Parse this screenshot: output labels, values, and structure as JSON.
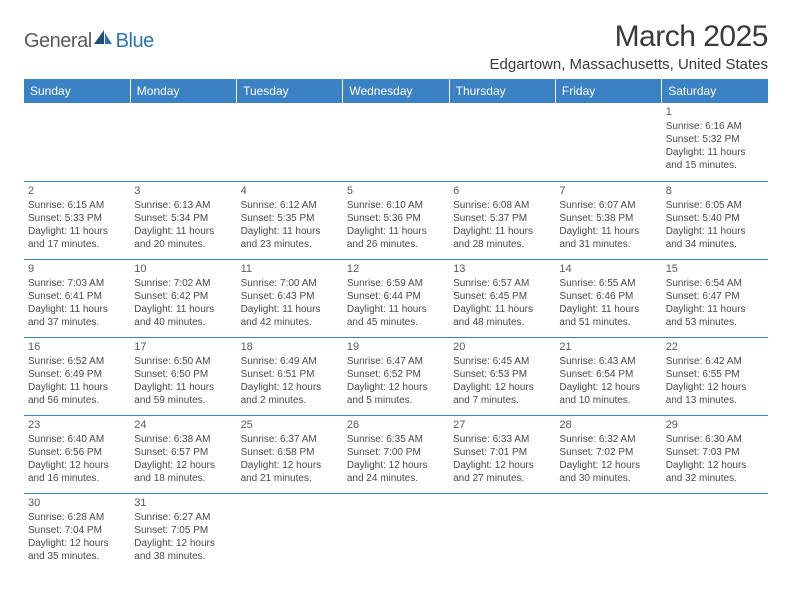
{
  "logo": {
    "general": "General",
    "blue": "Blue"
  },
  "title": "March 2025",
  "location": "Edgartown, Massachusetts, United States",
  "colors": {
    "header_bg": "#3b82c4",
    "header_text": "#ffffff",
    "border": "#3b82c4",
    "body_text": "#4a4a4a",
    "daynum_text": "#5a5a5a",
    "logo_gray": "#5a5a5a",
    "logo_blue": "#2a72b5",
    "title_text": "#3a3a3a",
    "background": "#ffffff"
  },
  "typography": {
    "title_fontsize": 30,
    "location_fontsize": 15,
    "header_fontsize": 12,
    "cell_fontsize": 10,
    "daynum_fontsize": 11,
    "logo_fontsize": 20
  },
  "weekdays": [
    "Sunday",
    "Monday",
    "Tuesday",
    "Wednesday",
    "Thursday",
    "Friday",
    "Saturday"
  ],
  "weeks": [
    [
      null,
      null,
      null,
      null,
      null,
      null,
      {
        "n": "1",
        "sunrise": "Sunrise: 6:16 AM",
        "sunset": "Sunset: 5:32 PM",
        "day1": "Daylight: 11 hours",
        "day2": "and 15 minutes."
      }
    ],
    [
      {
        "n": "2",
        "sunrise": "Sunrise: 6:15 AM",
        "sunset": "Sunset: 5:33 PM",
        "day1": "Daylight: 11 hours",
        "day2": "and 17 minutes."
      },
      {
        "n": "3",
        "sunrise": "Sunrise: 6:13 AM",
        "sunset": "Sunset: 5:34 PM",
        "day1": "Daylight: 11 hours",
        "day2": "and 20 minutes."
      },
      {
        "n": "4",
        "sunrise": "Sunrise: 6:12 AM",
        "sunset": "Sunset: 5:35 PM",
        "day1": "Daylight: 11 hours",
        "day2": "and 23 minutes."
      },
      {
        "n": "5",
        "sunrise": "Sunrise: 6:10 AM",
        "sunset": "Sunset: 5:36 PM",
        "day1": "Daylight: 11 hours",
        "day2": "and 26 minutes."
      },
      {
        "n": "6",
        "sunrise": "Sunrise: 6:08 AM",
        "sunset": "Sunset: 5:37 PM",
        "day1": "Daylight: 11 hours",
        "day2": "and 28 minutes."
      },
      {
        "n": "7",
        "sunrise": "Sunrise: 6:07 AM",
        "sunset": "Sunset: 5:38 PM",
        "day1": "Daylight: 11 hours",
        "day2": "and 31 minutes."
      },
      {
        "n": "8",
        "sunrise": "Sunrise: 6:05 AM",
        "sunset": "Sunset: 5:40 PM",
        "day1": "Daylight: 11 hours",
        "day2": "and 34 minutes."
      }
    ],
    [
      {
        "n": "9",
        "sunrise": "Sunrise: 7:03 AM",
        "sunset": "Sunset: 6:41 PM",
        "day1": "Daylight: 11 hours",
        "day2": "and 37 minutes."
      },
      {
        "n": "10",
        "sunrise": "Sunrise: 7:02 AM",
        "sunset": "Sunset: 6:42 PM",
        "day1": "Daylight: 11 hours",
        "day2": "and 40 minutes."
      },
      {
        "n": "11",
        "sunrise": "Sunrise: 7:00 AM",
        "sunset": "Sunset: 6:43 PM",
        "day1": "Daylight: 11 hours",
        "day2": "and 42 minutes."
      },
      {
        "n": "12",
        "sunrise": "Sunrise: 6:59 AM",
        "sunset": "Sunset: 6:44 PM",
        "day1": "Daylight: 11 hours",
        "day2": "and 45 minutes."
      },
      {
        "n": "13",
        "sunrise": "Sunrise: 6:57 AM",
        "sunset": "Sunset: 6:45 PM",
        "day1": "Daylight: 11 hours",
        "day2": "and 48 minutes."
      },
      {
        "n": "14",
        "sunrise": "Sunrise: 6:55 AM",
        "sunset": "Sunset: 6:46 PM",
        "day1": "Daylight: 11 hours",
        "day2": "and 51 minutes."
      },
      {
        "n": "15",
        "sunrise": "Sunrise: 6:54 AM",
        "sunset": "Sunset: 6:47 PM",
        "day1": "Daylight: 11 hours",
        "day2": "and 53 minutes."
      }
    ],
    [
      {
        "n": "16",
        "sunrise": "Sunrise: 6:52 AM",
        "sunset": "Sunset: 6:49 PM",
        "day1": "Daylight: 11 hours",
        "day2": "and 56 minutes."
      },
      {
        "n": "17",
        "sunrise": "Sunrise: 6:50 AM",
        "sunset": "Sunset: 6:50 PM",
        "day1": "Daylight: 11 hours",
        "day2": "and 59 minutes."
      },
      {
        "n": "18",
        "sunrise": "Sunrise: 6:49 AM",
        "sunset": "Sunset: 6:51 PM",
        "day1": "Daylight: 12 hours",
        "day2": "and 2 minutes."
      },
      {
        "n": "19",
        "sunrise": "Sunrise: 6:47 AM",
        "sunset": "Sunset: 6:52 PM",
        "day1": "Daylight: 12 hours",
        "day2": "and 5 minutes."
      },
      {
        "n": "20",
        "sunrise": "Sunrise: 6:45 AM",
        "sunset": "Sunset: 6:53 PM",
        "day1": "Daylight: 12 hours",
        "day2": "and 7 minutes."
      },
      {
        "n": "21",
        "sunrise": "Sunrise: 6:43 AM",
        "sunset": "Sunset: 6:54 PM",
        "day1": "Daylight: 12 hours",
        "day2": "and 10 minutes."
      },
      {
        "n": "22",
        "sunrise": "Sunrise: 6:42 AM",
        "sunset": "Sunset: 6:55 PM",
        "day1": "Daylight: 12 hours",
        "day2": "and 13 minutes."
      }
    ],
    [
      {
        "n": "23",
        "sunrise": "Sunrise: 6:40 AM",
        "sunset": "Sunset: 6:56 PM",
        "day1": "Daylight: 12 hours",
        "day2": "and 16 minutes."
      },
      {
        "n": "24",
        "sunrise": "Sunrise: 6:38 AM",
        "sunset": "Sunset: 6:57 PM",
        "day1": "Daylight: 12 hours",
        "day2": "and 18 minutes."
      },
      {
        "n": "25",
        "sunrise": "Sunrise: 6:37 AM",
        "sunset": "Sunset: 6:58 PM",
        "day1": "Daylight: 12 hours",
        "day2": "and 21 minutes."
      },
      {
        "n": "26",
        "sunrise": "Sunrise: 6:35 AM",
        "sunset": "Sunset: 7:00 PM",
        "day1": "Daylight: 12 hours",
        "day2": "and 24 minutes."
      },
      {
        "n": "27",
        "sunrise": "Sunrise: 6:33 AM",
        "sunset": "Sunset: 7:01 PM",
        "day1": "Daylight: 12 hours",
        "day2": "and 27 minutes."
      },
      {
        "n": "28",
        "sunrise": "Sunrise: 6:32 AM",
        "sunset": "Sunset: 7:02 PM",
        "day1": "Daylight: 12 hours",
        "day2": "and 30 minutes."
      },
      {
        "n": "29",
        "sunrise": "Sunrise: 6:30 AM",
        "sunset": "Sunset: 7:03 PM",
        "day1": "Daylight: 12 hours",
        "day2": "and 32 minutes."
      }
    ],
    [
      {
        "n": "30",
        "sunrise": "Sunrise: 6:28 AM",
        "sunset": "Sunset: 7:04 PM",
        "day1": "Daylight: 12 hours",
        "day2": "and 35 minutes."
      },
      {
        "n": "31",
        "sunrise": "Sunrise: 6:27 AM",
        "sunset": "Sunset: 7:05 PM",
        "day1": "Daylight: 12 hours",
        "day2": "and 38 minutes."
      },
      null,
      null,
      null,
      null,
      null
    ]
  ]
}
